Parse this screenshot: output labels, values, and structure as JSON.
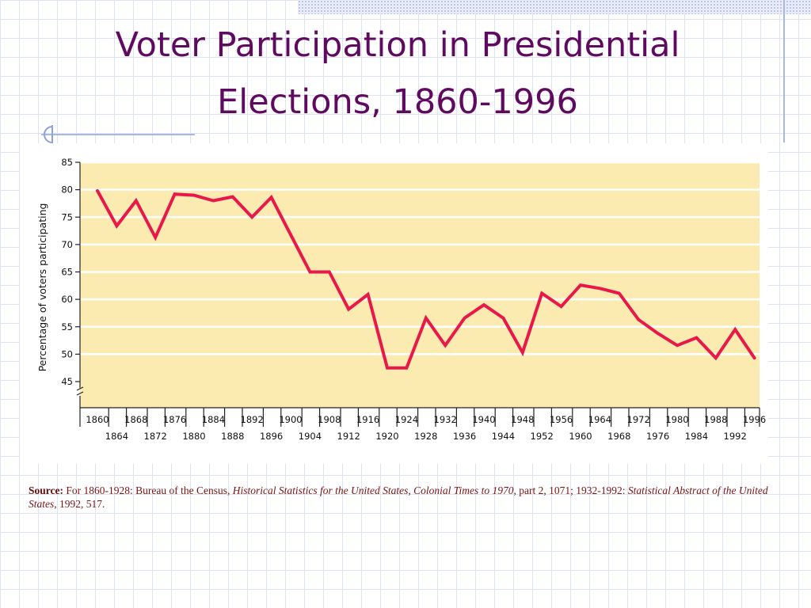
{
  "slide": {
    "title_line_1": "Voter Participation in Presidential",
    "title_line_2": "Elections, 1860-1996",
    "title_color": "#5f0a60",
    "background": "white with light blue grid"
  },
  "source": {
    "label": "Source:",
    "text_1": " For 1860-1928: Bureau of the Census, ",
    "title_1": "Historical Statistics for the United States, Colonial Times to 1970",
    "text_2": ", part 2, 1071; 1932-1992: ",
    "title_2": "Statistical Abstract of the United States",
    "text_3": ", 1992, 517."
  },
  "chart_data": {
    "type": "line",
    "title": "",
    "xlabel": "",
    "ylabel": "Percentage of voters participating",
    "ylim": [
      45,
      85
    ],
    "y_ticks": [
      45,
      50,
      55,
      60,
      65,
      70,
      75,
      80,
      85
    ],
    "y_axis_break": true,
    "grid": "horizontal",
    "plot_background": "#fcebb0",
    "line_color": "#e8194a",
    "x_ticks_top_row": [
      "1860",
      "1868",
      "1876",
      "1884",
      "1892",
      "1900",
      "1908",
      "1916",
      "1924",
      "1932",
      "1940",
      "1948",
      "1956",
      "1964",
      "1972",
      "1980",
      "1988",
      "1996"
    ],
    "x_ticks_bottom_row": [
      "1864",
      "1872",
      "1880",
      "1888",
      "1896",
      "1904",
      "1912",
      "1920",
      "1928",
      "1936",
      "1944",
      "1952",
      "1960",
      "1968",
      "1976",
      "1984",
      "1992"
    ],
    "x": [
      1860,
      1864,
      1868,
      1872,
      1876,
      1880,
      1884,
      1888,
      1892,
      1896,
      1900,
      1904,
      1908,
      1912,
      1916,
      1920,
      1924,
      1928,
      1932,
      1936,
      1940,
      1944,
      1948,
      1952,
      1956,
      1960,
      1964,
      1968,
      1972,
      1976,
      1980,
      1984,
      1988,
      1992,
      1996
    ],
    "series": [
      {
        "values": [
          79.8,
          73.4,
          78.0,
          71.3,
          79.2,
          79.0,
          78.0,
          78.7,
          75.0,
          78.6,
          71.8,
          65.0,
          65.0,
          58.2,
          60.9,
          47.5,
          47.5,
          56.6,
          51.6,
          56.6,
          59.0,
          56.6,
          50.3,
          61.1,
          58.7,
          62.6,
          62.0,
          61.1,
          56.3,
          53.8,
          51.6,
          53.0,
          49.3,
          54.5,
          49.3
        ]
      }
    ]
  }
}
